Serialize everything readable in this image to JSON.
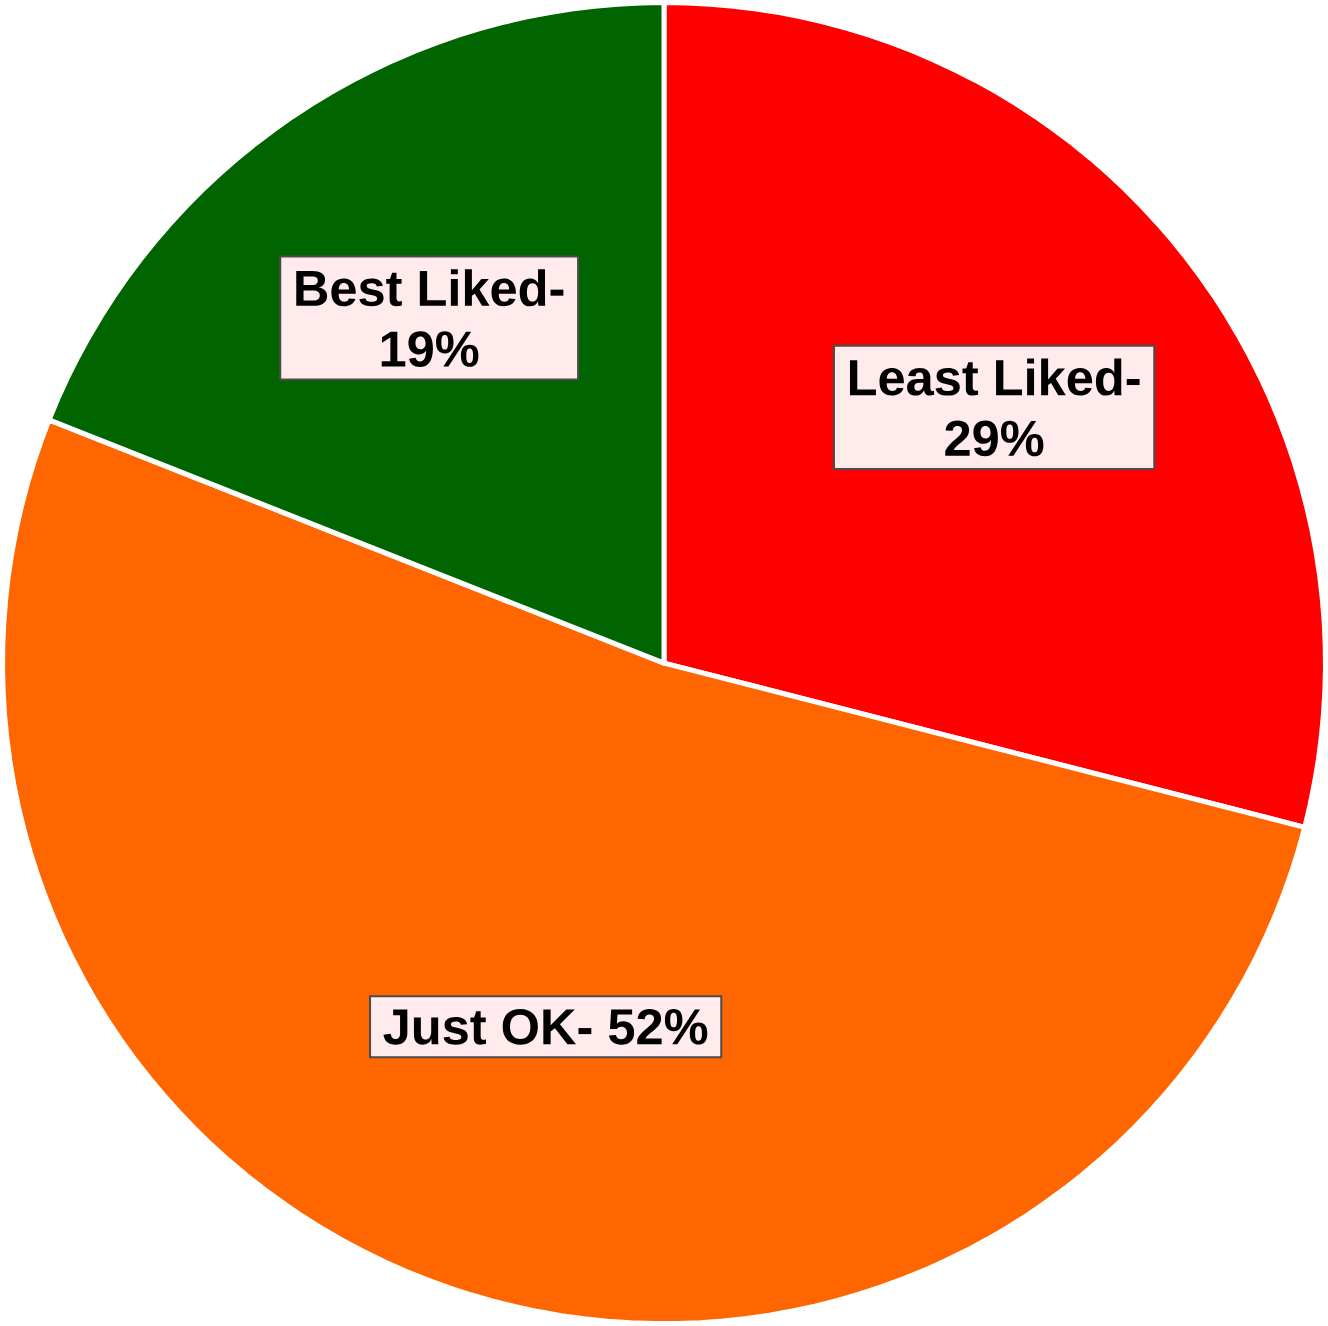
{
  "chart_data": {
    "type": "pie",
    "categories": [
      "Least Liked-",
      "Just OK-",
      "Best Liked-"
    ],
    "values": [
      29,
      52,
      19
    ],
    "value_labels": [
      "29%",
      "52%",
      "19%"
    ],
    "colors": [
      "#ff0000",
      "#ff6600",
      "#006400"
    ]
  }
}
